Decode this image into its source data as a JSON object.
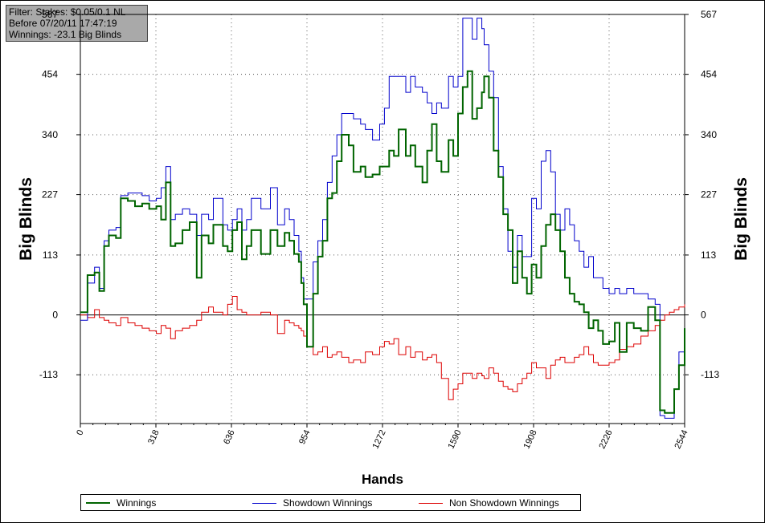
{
  "filter": {
    "line1": "Filter: Stakes: $0.05/0.1 NL",
    "line2": "Before 07/20/11 17:47:19",
    "line3": "Winnings: -23.1 Big Blinds"
  },
  "colors": {
    "winnings": "#006400",
    "showdown": "#0000cc",
    "non_showdown": "#dd0000",
    "grid": "#555555",
    "zero_line": "#000000"
  },
  "chart_data": {
    "type": "line",
    "xlabel": "Hands",
    "ylabel": "Big Blinds",
    "xlim": [
      0,
      2544
    ],
    "ylim": [
      -205,
      567
    ],
    "x_ticks": [
      "0",
      "318",
      "636",
      "954",
      "1272",
      "1590",
      "1908",
      "2226",
      "2544"
    ],
    "y_ticks": [
      "567",
      "454",
      "340",
      "227",
      "113",
      "0",
      "-113"
    ],
    "x_tick_values": [
      0,
      318,
      636,
      954,
      1272,
      1590,
      1908,
      2226,
      2544
    ],
    "y_tick_values": [
      567,
      454,
      340,
      227,
      113,
      0,
      -113
    ],
    "legend": {
      "position": "bottom",
      "entries": [
        "Winnings",
        "Showdown Winnings",
        "Non Showdown Winnings"
      ]
    },
    "grid": true,
    "series": [
      {
        "name": "Winnings",
        "x": [
          0,
          30,
          60,
          80,
          100,
          120,
          150,
          170,
          200,
          230,
          260,
          290,
          320,
          340,
          360,
          380,
          400,
          430,
          460,
          490,
          510,
          540,
          560,
          600,
          620,
          640,
          660,
          680,
          700,
          720,
          760,
          800,
          830,
          860,
          880,
          900,
          920,
          930,
          940,
          954,
          980,
          1000,
          1020,
          1040,
          1060,
          1080,
          1100,
          1130,
          1150,
          1180,
          1200,
          1230,
          1260,
          1280,
          1300,
          1320,
          1340,
          1370,
          1390,
          1410,
          1440,
          1460,
          1480,
          1500,
          1520,
          1550,
          1570,
          1590,
          1610,
          1630,
          1650,
          1670,
          1690,
          1700,
          1720,
          1740,
          1760,
          1780,
          1800,
          1820,
          1840,
          1860,
          1880,
          1900,
          1920,
          1940,
          1960,
          1980,
          2000,
          2020,
          2040,
          2060,
          2080,
          2100,
          2120,
          2140,
          2160,
          2180,
          2200,
          2226,
          2250,
          2270,
          2300,
          2330,
          2360,
          2390,
          2420,
          2440,
          2460,
          2480,
          2500,
          2520,
          2544
        ],
        "y": [
          5,
          75,
          80,
          45,
          130,
          150,
          145,
          220,
          215,
          205,
          210,
          200,
          205,
          180,
          250,
          130,
          135,
          160,
          175,
          70,
          150,
          135,
          170,
          130,
          120,
          160,
          175,
          105,
          130,
          160,
          115,
          160,
          130,
          155,
          140,
          115,
          100,
          60,
          20,
          -60,
          40,
          110,
          140,
          220,
          230,
          290,
          340,
          320,
          270,
          280,
          260,
          265,
          280,
          280,
          310,
          300,
          350,
          300,
          320,
          280,
          250,
          310,
          360,
          290,
          270,
          330,
          300,
          380,
          430,
          460,
          370,
          390,
          420,
          450,
          410,
          310,
          260,
          190,
          160,
          60,
          120,
          70,
          40,
          95,
          70,
          130,
          170,
          190,
          160,
          120,
          70,
          40,
          25,
          20,
          5,
          -25,
          -10,
          -30,
          -55,
          -50,
          -15,
          -70,
          -15,
          -25,
          -30,
          15,
          -10,
          -180,
          -185,
          -185,
          -140,
          -95,
          -25
        ]
      },
      {
        "name": "Showdown Winnings",
        "x": [
          0,
          30,
          60,
          80,
          100,
          120,
          150,
          170,
          200,
          230,
          260,
          290,
          320,
          340,
          360,
          380,
          400,
          430,
          460,
          490,
          510,
          540,
          560,
          600,
          620,
          640,
          660,
          680,
          700,
          720,
          760,
          800,
          830,
          860,
          880,
          900,
          920,
          930,
          940,
          954,
          980,
          1000,
          1020,
          1040,
          1060,
          1080,
          1100,
          1130,
          1150,
          1180,
          1200,
          1230,
          1260,
          1280,
          1300,
          1320,
          1340,
          1370,
          1390,
          1410,
          1440,
          1460,
          1480,
          1500,
          1520,
          1550,
          1570,
          1590,
          1610,
          1630,
          1650,
          1670,
          1690,
          1700,
          1720,
          1740,
          1760,
          1780,
          1800,
          1820,
          1840,
          1860,
          1880,
          1900,
          1920,
          1940,
          1960,
          1980,
          2000,
          2020,
          2040,
          2060,
          2080,
          2100,
          2120,
          2140,
          2160,
          2180,
          2200,
          2226,
          2250,
          2270,
          2300,
          2330,
          2360,
          2390,
          2420,
          2440,
          2460,
          2480,
          2500,
          2520,
          2544
        ],
        "y": [
          -10,
          60,
          90,
          50,
          140,
          160,
          165,
          225,
          230,
          230,
          225,
          215,
          220,
          240,
          280,
          180,
          190,
          200,
          190,
          150,
          190,
          180,
          220,
          170,
          160,
          180,
          200,
          160,
          180,
          220,
          200,
          240,
          170,
          200,
          180,
          150,
          120,
          70,
          30,
          30,
          100,
          140,
          180,
          250,
          300,
          340,
          380,
          380,
          370,
          360,
          350,
          330,
          360,
          390,
          450,
          450,
          450,
          420,
          450,
          430,
          420,
          400,
          380,
          400,
          390,
          450,
          430,
          450,
          560,
          560,
          520,
          560,
          540,
          510,
          460,
          410,
          280,
          200,
          120,
          90,
          150,
          110,
          110,
          220,
          200,
          290,
          310,
          270,
          190,
          160,
          200,
          170,
          140,
          120,
          90,
          110,
          70,
          70,
          50,
          40,
          50,
          40,
          50,
          40,
          40,
          30,
          20,
          -190,
          -195,
          -195,
          -140,
          -70,
          -30
        ]
      },
      {
        "name": "Non Showdown Winnings",
        "x": [
          0,
          30,
          60,
          80,
          100,
          120,
          150,
          170,
          200,
          230,
          260,
          290,
          320,
          340,
          360,
          380,
          400,
          430,
          460,
          490,
          510,
          540,
          560,
          600,
          620,
          640,
          660,
          680,
          700,
          720,
          760,
          800,
          830,
          860,
          880,
          900,
          920,
          930,
          940,
          954,
          980,
          1000,
          1020,
          1040,
          1060,
          1080,
          1100,
          1130,
          1150,
          1180,
          1200,
          1230,
          1260,
          1280,
          1300,
          1320,
          1340,
          1370,
          1390,
          1410,
          1440,
          1460,
          1480,
          1500,
          1520,
          1550,
          1570,
          1590,
          1610,
          1630,
          1650,
          1670,
          1690,
          1700,
          1720,
          1740,
          1760,
          1780,
          1800,
          1820,
          1840,
          1860,
          1880,
          1900,
          1920,
          1940,
          1960,
          1980,
          2000,
          2020,
          2040,
          2060,
          2080,
          2100,
          2120,
          2140,
          2160,
          2180,
          2200,
          2226,
          2250,
          2270,
          2300,
          2330,
          2360,
          2390,
          2420,
          2440,
          2460,
          2480,
          2500,
          2520,
          2544
        ],
        "y": [
          0,
          -5,
          10,
          -5,
          -10,
          -15,
          -20,
          -5,
          -15,
          -20,
          -25,
          -30,
          -35,
          -20,
          -25,
          -45,
          -30,
          -25,
          -20,
          -10,
          5,
          15,
          5,
          0,
          20,
          35,
          10,
          5,
          0,
          0,
          5,
          0,
          -35,
          -10,
          -15,
          -20,
          -25,
          -30,
          -40,
          -60,
          -75,
          -70,
          -60,
          -80,
          -75,
          -70,
          -80,
          -90,
          -85,
          -90,
          -70,
          -75,
          -60,
          -50,
          -55,
          -45,
          -75,
          -60,
          -80,
          -70,
          -85,
          -80,
          -75,
          -90,
          -120,
          -160,
          -140,
          -130,
          -110,
          -110,
          -120,
          -110,
          -115,
          -120,
          -100,
          -110,
          -125,
          -135,
          -140,
          -145,
          -130,
          -120,
          -110,
          -90,
          -100,
          -100,
          -120,
          -95,
          -85,
          -80,
          -90,
          -90,
          -80,
          -75,
          -60,
          -75,
          -90,
          -95,
          -95,
          -90,
          -85,
          -65,
          -60,
          -55,
          -40,
          -30,
          -20,
          -10,
          0,
          5,
          10,
          15,
          20
        ]
      }
    ]
  }
}
